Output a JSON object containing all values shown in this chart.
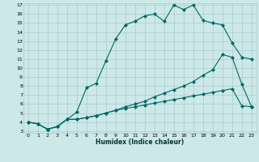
{
  "xlabel": "Humidex (Indice chaleur)",
  "background_color": "#cce8e8",
  "grid_color": "#aacccc",
  "line_color": "#006666",
  "xlim": [
    -0.5,
    23.5
  ],
  "ylim": [
    2.8,
    17.2
  ],
  "xticks": [
    0,
    1,
    2,
    3,
    4,
    5,
    6,
    7,
    8,
    9,
    10,
    11,
    12,
    13,
    14,
    15,
    16,
    17,
    18,
    19,
    20,
    21,
    22,
    23
  ],
  "yticks": [
    3,
    4,
    5,
    6,
    7,
    8,
    9,
    10,
    11,
    12,
    13,
    14,
    15,
    16,
    17
  ],
  "series1_x": [
    0,
    1,
    2,
    3,
    4,
    5,
    6,
    7,
    8,
    9,
    10,
    11,
    12,
    13,
    14,
    15,
    16,
    17,
    18,
    19,
    20,
    21,
    22,
    23
  ],
  "series1_y": [
    4.0,
    3.8,
    3.2,
    3.5,
    4.3,
    5.1,
    7.8,
    8.3,
    10.8,
    13.2,
    14.8,
    15.2,
    15.8,
    16.0,
    15.2,
    17.0,
    16.5,
    17.0,
    15.3,
    15.0,
    14.8,
    12.8,
    11.2,
    11.0
  ],
  "series2_x": [
    0,
    1,
    2,
    3,
    4,
    5,
    6,
    7,
    8,
    9,
    10,
    11,
    12,
    13,
    14,
    15,
    16,
    17,
    18,
    19,
    20,
    21,
    22,
    23
  ],
  "series2_y": [
    4.0,
    3.8,
    3.2,
    3.5,
    4.3,
    4.3,
    4.5,
    4.7,
    5.0,
    5.3,
    5.7,
    6.0,
    6.3,
    6.8,
    7.2,
    7.6,
    8.0,
    8.5,
    9.2,
    9.8,
    11.5,
    11.2,
    8.2,
    5.7
  ],
  "series3_x": [
    0,
    1,
    2,
    3,
    4,
    5,
    6,
    7,
    8,
    9,
    10,
    11,
    12,
    13,
    14,
    15,
    16,
    17,
    18,
    19,
    20,
    21,
    22,
    23
  ],
  "series3_y": [
    4.0,
    3.8,
    3.2,
    3.5,
    4.3,
    4.3,
    4.5,
    4.7,
    5.0,
    5.3,
    5.5,
    5.7,
    5.9,
    6.1,
    6.3,
    6.5,
    6.7,
    6.9,
    7.1,
    7.3,
    7.5,
    7.7,
    5.8,
    5.7
  ],
  "figsize": [
    3.2,
    2.0
  ],
  "dpi": 100
}
